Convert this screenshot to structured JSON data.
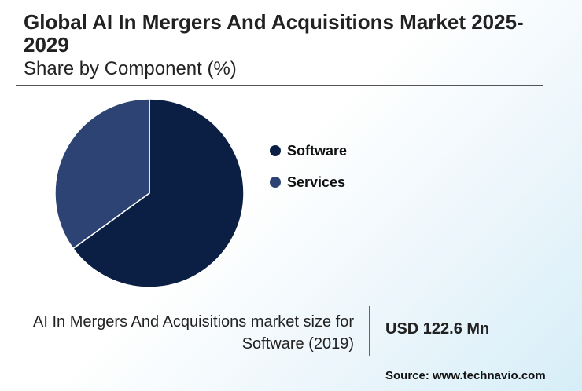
{
  "header": {
    "title": "Global AI In Mergers And Acquisitions Market 2025-2029",
    "subtitle": "Share by Component (%)"
  },
  "chart_data": {
    "type": "pie",
    "title": "Global AI In Mergers And Acquisitions Market 2025-2029",
    "subtitle": "Share by Component (%)",
    "categories": [
      "Software",
      "Services"
    ],
    "values": [
      65,
      35
    ],
    "colors": [
      "#0b1f45",
      "#2c4373"
    ],
    "legend_position": "right"
  },
  "stat": {
    "label": "AI In Mergers And Acquisitions market size for Software (2019)",
    "value": "USD 122.6 Mn"
  },
  "source": "Source: www.technavio.com"
}
